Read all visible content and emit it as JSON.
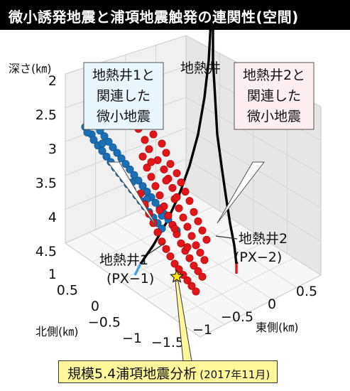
{
  "header": {
    "title": "微小誘発地震と浦項地震触発の連関性(空間)"
  },
  "labels": {
    "z_axis_title": "深さ(㎞)",
    "x_axis_title": "東側(㎞)",
    "y_axis_title": "北側(㎞)",
    "well_title": "地熱井",
    "box1": [
      "地熱井1と",
      "関連した",
      "微小地震"
    ],
    "box2": [
      "地熱井2と",
      "関連した",
      "微小地震"
    ],
    "well1_label": [
      "地熱井1",
      "(PX−1)"
    ],
    "well2_label": [
      "地熱井2",
      "(PX−2)"
    ]
  },
  "caption": {
    "text": "規模5.4浦項地震分析",
    "date": "(2017年11月)"
  },
  "chart_data": {
    "type": "scatter",
    "z_ticks": [
      "2",
      "2.5",
      "3",
      "3.5",
      "4",
      "4.5"
    ],
    "y_ticks": [
      "1",
      "0.5",
      "0",
      "−0.5",
      "−1"
    ],
    "x_ticks": [
      "−1.5",
      "−1",
      "−0.5",
      "0",
      "0.5"
    ],
    "zlim": [
      2,
      4.5
    ],
    "colors": {
      "px1_quakes": "#1a6fb5",
      "px2_quakes": "#e0161b",
      "well": "#000000",
      "mainshock": "#ffe600"
    },
    "series": [
      {
        "values": [
          [
            0.22,
            0.36
          ],
          [
            0.25,
            0.39
          ],
          [
            0.2,
            0.41
          ],
          [
            0.27,
            0.43
          ],
          [
            0.23,
            0.45
          ],
          [
            0.29,
            0.46
          ],
          [
            0.24,
            0.48
          ],
          [
            0.31,
            0.49
          ],
          [
            0.26,
            0.51
          ],
          [
            0.33,
            0.52
          ],
          [
            0.28,
            0.54
          ],
          [
            0.35,
            0.55
          ],
          [
            0.3,
            0.57
          ],
          [
            0.37,
            0.58
          ],
          [
            0.32,
            0.6
          ],
          [
            0.39,
            0.61
          ],
          [
            0.34,
            0.63
          ],
          [
            0.41,
            0.64
          ],
          [
            0.36,
            0.66
          ],
          [
            0.43,
            0.67
          ],
          [
            0.38,
            0.69
          ],
          [
            0.45,
            0.7
          ],
          [
            0.4,
            0.72
          ],
          [
            0.47,
            0.73
          ],
          [
            0.42,
            0.75
          ],
          [
            0.49,
            0.76
          ],
          [
            0.44,
            0.78
          ],
          [
            0.51,
            0.79
          ],
          [
            0.46,
            0.81
          ],
          [
            0.53,
            0.82
          ],
          [
            0.48,
            0.84
          ],
          [
            0.55,
            0.85
          ],
          [
            0.5,
            0.87
          ],
          [
            0.57,
            0.88
          ],
          [
            0.52,
            0.9
          ],
          [
            0.59,
            0.91
          ],
          [
            0.54,
            0.93
          ],
          [
            0.61,
            0.94
          ],
          [
            0.56,
            0.96
          ],
          [
            0.63,
            0.97
          ],
          [
            0.21,
            0.44
          ],
          [
            0.28,
            0.5
          ],
          [
            0.35,
            0.62
          ],
          [
            0.42,
            0.71
          ],
          [
            0.49,
            0.8
          ],
          [
            0.56,
            0.89
          ]
        ]
      },
      {
        "values": [
          [
            0.45,
            0.42
          ],
          [
            0.52,
            0.45
          ],
          [
            0.48,
            0.48
          ],
          [
            0.56,
            0.5
          ],
          [
            0.5,
            0.53
          ],
          [
            0.58,
            0.55
          ],
          [
            0.47,
            0.57
          ],
          [
            0.54,
            0.59
          ],
          [
            0.6,
            0.61
          ],
          [
            0.49,
            0.63
          ],
          [
            0.57,
            0.64
          ],
          [
            0.63,
            0.66
          ],
          [
            0.51,
            0.68
          ],
          [
            0.59,
            0.69
          ],
          [
            0.65,
            0.71
          ],
          [
            0.53,
            0.73
          ],
          [
            0.61,
            0.74
          ],
          [
            0.67,
            0.76
          ],
          [
            0.46,
            0.77
          ],
          [
            0.55,
            0.78
          ],
          [
            0.62,
            0.8
          ],
          [
            0.69,
            0.81
          ],
          [
            0.48,
            0.83
          ],
          [
            0.57,
            0.84
          ],
          [
            0.64,
            0.85
          ],
          [
            0.71,
            0.87
          ],
          [
            0.5,
            0.88
          ],
          [
            0.59,
            0.89
          ],
          [
            0.66,
            0.9
          ],
          [
            0.73,
            0.92
          ],
          [
            0.52,
            0.93
          ],
          [
            0.61,
            0.94
          ],
          [
            0.68,
            0.95
          ],
          [
            0.75,
            0.97
          ],
          [
            0.54,
            0.98
          ],
          [
            0.63,
            0.99
          ],
          [
            0.7,
            1.0
          ],
          [
            0.77,
            1.02
          ],
          [
            0.56,
            1.03
          ],
          [
            0.65,
            1.04
          ],
          [
            0.72,
            1.05
          ],
          [
            0.58,
            1.07
          ],
          [
            0.67,
            1.08
          ],
          [
            0.74,
            1.09
          ],
          [
            0.6,
            1.11
          ],
          [
            0.69,
            1.12
          ],
          [
            0.76,
            1.13
          ],
          [
            0.62,
            1.15
          ],
          [
            0.71,
            1.16
          ],
          [
            0.64,
            1.18
          ],
          [
            0.73,
            1.19
          ],
          [
            0.66,
            1.21
          ],
          [
            0.75,
            1.22
          ],
          [
            0.68,
            1.24
          ],
          [
            0.7,
            1.27
          ],
          [
            0.72,
            1.3
          ],
          [
            0.51,
            0.6
          ],
          [
            0.58,
            0.7
          ],
          [
            0.63,
            0.79
          ],
          [
            0.55,
            0.86
          ],
          [
            0.62,
            0.96
          ],
          [
            0.68,
            1.06
          ]
        ]
      }
    ],
    "wells": [
      {
        "path": [
          [
            0.79,
            -0.16
          ],
          [
            0.78,
            0.05
          ],
          [
            0.76,
            0.25
          ],
          [
            0.73,
            0.45
          ],
          [
            0.69,
            0.62
          ],
          [
            0.64,
            0.78
          ],
          [
            0.58,
            0.93
          ],
          [
            0.52,
            1.05
          ],
          [
            0.46,
            1.15
          ]
        ]
      },
      {
        "path": [
          [
            0.8,
            -0.16
          ],
          [
            0.8,
            0.05
          ],
          [
            0.81,
            0.25
          ],
          [
            0.82,
            0.45
          ],
          [
            0.84,
            0.62
          ],
          [
            0.86,
            0.78
          ],
          [
            0.88,
            0.93
          ],
          [
            0.9,
            1.05
          ],
          [
            0.91,
            1.15
          ]
        ]
      }
    ],
    "mainshock": [
      0.63,
      1.22
    ]
  }
}
